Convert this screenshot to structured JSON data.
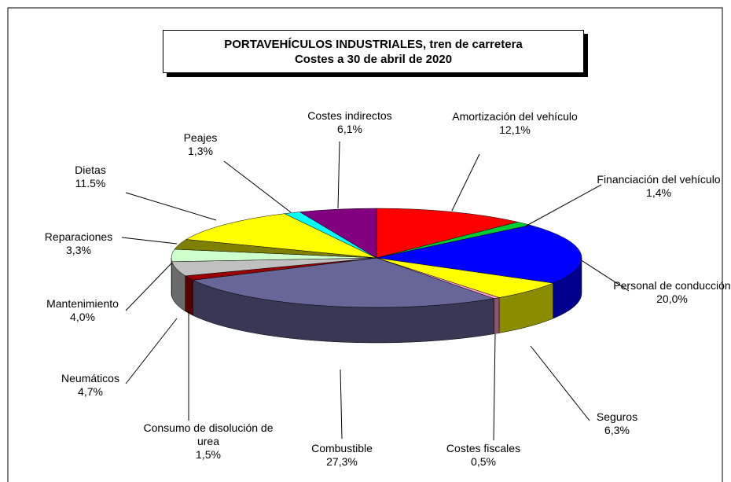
{
  "chart_data": {
    "type": "pie",
    "title": "PORTAVEHÍCULOS INDUSTRIALES, tren de carretera",
    "subtitle": "Costes a 30 de abril de 2020",
    "categories": [
      "Amortización del vehículo",
      "Financiación del vehículo",
      "Personal de conducción",
      "Seguros",
      "Costes fiscales",
      "Combustible",
      "Consumo de disolución de urea",
      "Neumáticos",
      "Mantenimiento",
      "Reparaciones",
      "Dietas",
      "Peajes",
      "Costes indirectos"
    ],
    "values": [
      12.1,
      1.4,
      20.0,
      6.3,
      0.5,
      27.3,
      1.5,
      4.7,
      4.0,
      3.3,
      11.5,
      1.3,
      6.1
    ],
    "value_labels": [
      "12,1%",
      "1,4%",
      "20,0%",
      "6,3%",
      "0,5%",
      "27,3%",
      "1,5%",
      "4,7%",
      "4,0%",
      "3,3%",
      "11.5%",
      "1,3%",
      "6,1%"
    ],
    "colors": [
      "#ff0000",
      "#00cc33",
      "#0000ff",
      "#ffff00",
      "#ff99cc",
      "#666699",
      "#990000",
      "#c0c0c0",
      "#ccffcc",
      "#808000",
      "#ffff00",
      "#00ffff",
      "#800080"
    ]
  }
}
